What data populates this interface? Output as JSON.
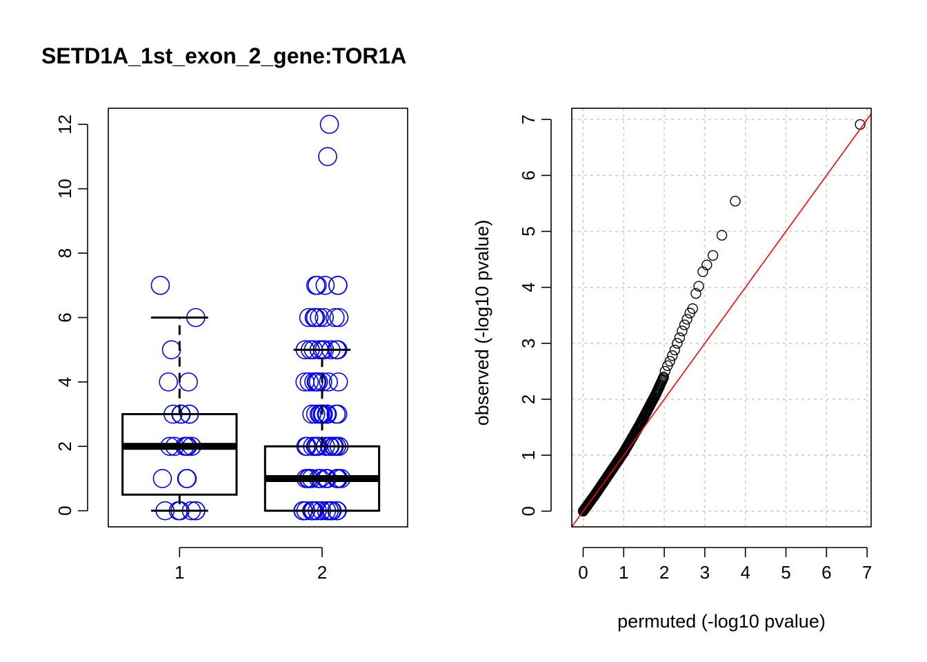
{
  "colors": {
    "points": "#0000ff",
    "box": "#000000",
    "qq_points": "#000000",
    "reference_line": "#ff0000",
    "grid": "#c8c8c8"
  },
  "chart_data": [
    {
      "type": "box",
      "title": "SETD1A_1st_exon_2_gene:TOR1A",
      "xlabel": "",
      "ylabel": "",
      "categories": [
        "1",
        "2"
      ],
      "xlim": [
        0.5,
        2.6
      ],
      "ylim": [
        -0.5,
        12.5
      ],
      "yticks": [
        0,
        2,
        4,
        6,
        8,
        10,
        12
      ],
      "boxes": [
        {
          "group": "1",
          "min": 0,
          "q1": 0.5,
          "median": 2,
          "q3": 3,
          "max": 6
        },
        {
          "group": "2",
          "min": 0,
          "q1": 0,
          "median": 1,
          "q3": 2,
          "max": 5
        }
      ],
      "points": [
        {
          "group": "1",
          "y": [
            7,
            6,
            5,
            4,
            4,
            3,
            3,
            3,
            3,
            3,
            2,
            2,
            2,
            2,
            2,
            2,
            1,
            1,
            1,
            0,
            0,
            0,
            0,
            0,
            0
          ]
        },
        {
          "group": "2",
          "y": [
            12,
            11,
            7,
            7,
            7,
            7,
            7,
            6,
            6,
            6,
            6,
            6,
            6,
            6,
            6,
            5,
            5,
            5,
            5,
            5,
            5,
            5,
            5,
            5,
            4,
            4,
            4,
            4,
            4,
            4,
            4,
            4,
            4,
            4,
            3,
            3,
            3,
            3,
            3,
            3,
            3,
            3,
            3,
            3,
            3,
            3,
            2,
            2,
            2,
            2,
            2,
            2,
            2,
            2,
            2,
            2,
            2,
            2,
            2,
            2,
            1,
            1,
            1,
            1,
            1,
            1,
            1,
            1,
            1,
            1,
            1,
            1,
            1,
            1,
            1,
            0,
            0,
            0,
            0,
            0,
            0,
            0,
            0,
            0,
            0,
            0,
            0,
            0,
            0,
            0,
            0
          ]
        }
      ]
    },
    {
      "type": "scatter",
      "title": "",
      "xlabel": "permuted (-log10 pvalue)",
      "ylabel": "observed (-log10 pvalue)",
      "xlim": [
        -0.28,
        7.1
      ],
      "ylim": [
        -0.28,
        7.2
      ],
      "xticks": [
        0,
        1,
        2,
        3,
        4,
        5,
        6,
        7
      ],
      "yticks": [
        0,
        1,
        2,
        3,
        4,
        5,
        6,
        7
      ],
      "grid": true,
      "reference_line": "y = x",
      "outlier_points": [
        {
          "x": 6.83,
          "y": 6.91
        },
        {
          "x": 3.75,
          "y": 5.54
        },
        {
          "x": 3.42,
          "y": 4.93
        },
        {
          "x": 3.2,
          "y": 4.57
        },
        {
          "x": 3.05,
          "y": 4.4
        },
        {
          "x": 2.95,
          "y": 4.28
        },
        {
          "x": 2.85,
          "y": 4.02
        },
        {
          "x": 2.78,
          "y": 3.89
        },
        {
          "x": 2.7,
          "y": 3.62
        },
        {
          "x": 2.63,
          "y": 3.54
        },
        {
          "x": 2.56,
          "y": 3.43
        },
        {
          "x": 2.5,
          "y": 3.33
        },
        {
          "x": 2.44,
          "y": 3.22
        },
        {
          "x": 2.38,
          "y": 3.1
        },
        {
          "x": 2.32,
          "y": 3.0
        },
        {
          "x": 2.26,
          "y": 2.88
        },
        {
          "x": 2.2,
          "y": 2.78
        },
        {
          "x": 2.14,
          "y": 2.68
        },
        {
          "x": 2.08,
          "y": 2.6
        },
        {
          "x": 2.02,
          "y": 2.5
        }
      ],
      "dense_curve": [
        {
          "x": 0.0,
          "y": 0.0
        },
        {
          "x": 0.1,
          "y": 0.1
        },
        {
          "x": 0.3,
          "y": 0.3
        },
        {
          "x": 0.6,
          "y": 0.62
        },
        {
          "x": 1.0,
          "y": 1.05
        },
        {
          "x": 1.4,
          "y": 1.55
        },
        {
          "x": 1.8,
          "y": 2.1
        },
        {
          "x": 2.0,
          "y": 2.42
        }
      ]
    }
  ]
}
